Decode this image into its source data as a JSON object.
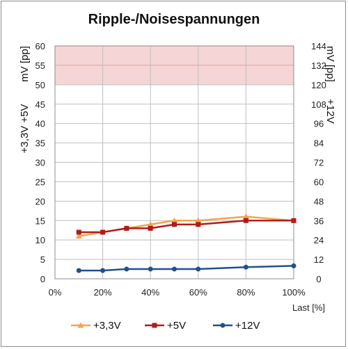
{
  "chart_data": {
    "type": "line",
    "title": "Ripple-/Noisespannungen",
    "xlabel": "Last [%]",
    "ylabel_left_top": "mV [pp]",
    "ylabel_left_bottom": "+3,3V +5V",
    "ylabel_right": "+12V",
    "x_ticks": [
      "0%",
      "20%",
      "40%",
      "60%",
      "80%",
      "100%"
    ],
    "xlim": [
      0,
      100
    ],
    "y_left_ticks": [
      "0",
      "5",
      "10",
      "15",
      "20",
      "25",
      "30",
      "35",
      "40",
      "45",
      "50",
      "55",
      "60"
    ],
    "ylim_left": [
      0,
      60
    ],
    "y_right_ticks": [
      "0",
      "12",
      "24",
      "36",
      "48",
      "60",
      "72",
      "84",
      "96",
      "108",
      "120",
      "132",
      "144"
    ],
    "ylim_right": [
      0,
      144
    ],
    "limit_band_left": [
      50,
      60
    ],
    "grid": true,
    "legend_position": "bottom",
    "series": [
      {
        "name": "+3,3V",
        "axis": "left",
        "color": "#f4a44a",
        "marker": "triangle",
        "x": [
          10,
          20,
          30,
          40,
          50,
          60,
          80,
          100
        ],
        "values": [
          11,
          12,
          13,
          14,
          15,
          15,
          16,
          15
        ]
      },
      {
        "name": "+5V",
        "axis": "left",
        "color": "#b01c1c",
        "marker": "square",
        "x": [
          10,
          20,
          30,
          40,
          50,
          60,
          80,
          100
        ],
        "values": [
          12,
          12,
          13,
          13,
          14,
          14,
          15,
          15
        ]
      },
      {
        "name": "+12V",
        "axis": "right",
        "color": "#234f8c",
        "marker": "circle",
        "x": [
          10,
          20,
          30,
          40,
          50,
          60,
          80,
          100
        ],
        "values": [
          5.1,
          5.1,
          6,
          6,
          6,
          6,
          7.2,
          8
        ]
      }
    ],
    "band_color": "#f5d5d5",
    "band_line_color": "#e8a0a0"
  }
}
